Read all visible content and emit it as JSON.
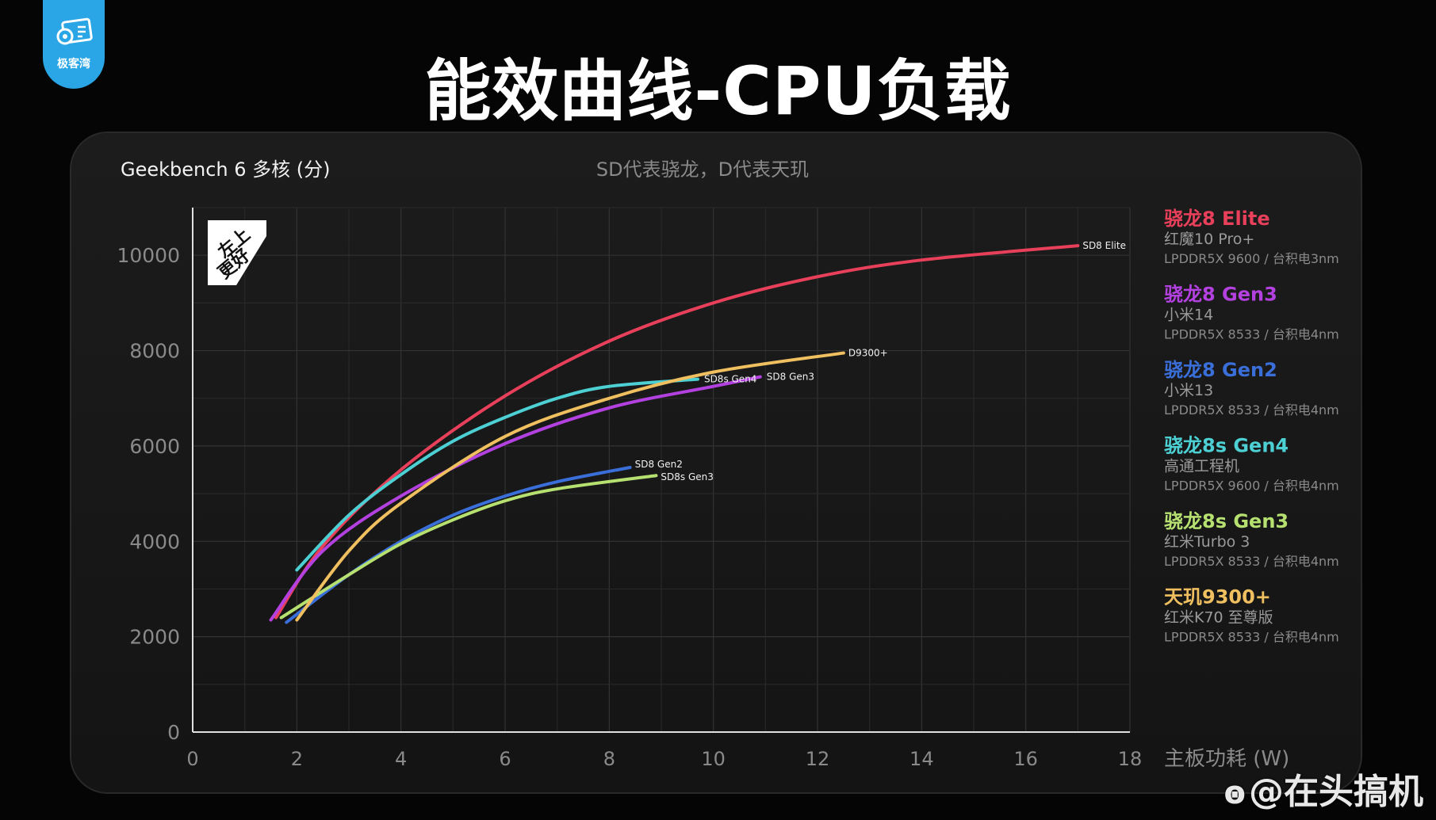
{
  "brand": {
    "name": "极客湾",
    "icon": "gear-card-icon",
    "color": "#2aa6e6"
  },
  "page_title": "能效曲线-CPU负载",
  "watermark": "@在头搞机",
  "chart_data": {
    "type": "line",
    "title": "Geekbench 6  多核 (分)",
    "subtitle": "SD代表骁龙，D代表天玑",
    "ylabel": "Geekbench 6  多核 (分)",
    "xlabel": "主板功耗 (W)",
    "badge": [
      "左上",
      "更好"
    ],
    "xlim": [
      0,
      18
    ],
    "ylim": [
      0,
      11000
    ],
    "xticks": [
      0,
      2,
      4,
      6,
      8,
      10,
      12,
      14,
      16,
      18
    ],
    "yticks": [
      0,
      2000,
      4000,
      6000,
      8000,
      10000
    ],
    "grid": true,
    "legend_position": "right",
    "series": [
      {
        "name": "骁龙8 Elite",
        "label": "SD8 Elite",
        "color": "#e8405a",
        "device": "红魔10 Pro+",
        "spec": "LPDDR5X 9600 / 台积电3nm",
        "points": [
          [
            1.6,
            2400
          ],
          [
            2.5,
            3900
          ],
          [
            4,
            5500
          ],
          [
            6,
            7050
          ],
          [
            8,
            8200
          ],
          [
            10,
            9000
          ],
          [
            12,
            9550
          ],
          [
            14,
            9900
          ],
          [
            17,
            10200
          ]
        ]
      },
      {
        "name": "骁龙8 Gen3",
        "label": "SD8 Gen3",
        "color": "#b341e0",
        "device": "小米14",
        "spec": "LPDDR5X 8533 / 台积电4nm",
        "points": [
          [
            1.5,
            2350
          ],
          [
            2.5,
            3800
          ],
          [
            4,
            4950
          ],
          [
            6,
            6050
          ],
          [
            8,
            6800
          ],
          [
            10,
            7250
          ],
          [
            10.9,
            7450
          ]
        ]
      },
      {
        "name": "骁龙8 Gen2",
        "label": "SD8 Gen2",
        "color": "#3a6ed8",
        "device": "小米13",
        "spec": "LPDDR5X 8533 / 台积电4nm",
        "points": [
          [
            1.8,
            2300
          ],
          [
            3,
            3300
          ],
          [
            4,
            4000
          ],
          [
            5,
            4550
          ],
          [
            6,
            4950
          ],
          [
            7,
            5250
          ],
          [
            8.4,
            5550
          ]
        ]
      },
      {
        "name": "骁龙8s Gen4",
        "label": "SD8s Gen4",
        "color": "#4dd0d4",
        "device": "高通工程机",
        "spec": "LPDDR5X 9600 / 台积电4nm",
        "points": [
          [
            2,
            3400
          ],
          [
            3,
            4550
          ],
          [
            4,
            5400
          ],
          [
            5,
            6100
          ],
          [
            6,
            6600
          ],
          [
            7,
            7000
          ],
          [
            8,
            7250
          ],
          [
            9.7,
            7400
          ]
        ]
      },
      {
        "name": "骁龙8s Gen3",
        "label": "SD8s Gen3",
        "color": "#b6e070",
        "device": "红米Turbo 3",
        "spec": "LPDDR5X 8533 / 台积电4nm",
        "points": [
          [
            1.7,
            2400
          ],
          [
            3,
            3300
          ],
          [
            4,
            3950
          ],
          [
            5,
            4450
          ],
          [
            6,
            4850
          ],
          [
            7,
            5100
          ],
          [
            8.9,
            5380
          ]
        ]
      },
      {
        "name": "天玑9300+",
        "label": "D9300+",
        "color": "#f0c060",
        "device": "红米K70 至尊版",
        "spec": "LPDDR5X 8533 / 台积电4nm",
        "points": [
          [
            2,
            2350
          ],
          [
            3,
            3800
          ],
          [
            4,
            4800
          ],
          [
            6,
            6200
          ],
          [
            8,
            7000
          ],
          [
            10,
            7550
          ],
          [
            12.5,
            7950
          ]
        ]
      }
    ]
  }
}
